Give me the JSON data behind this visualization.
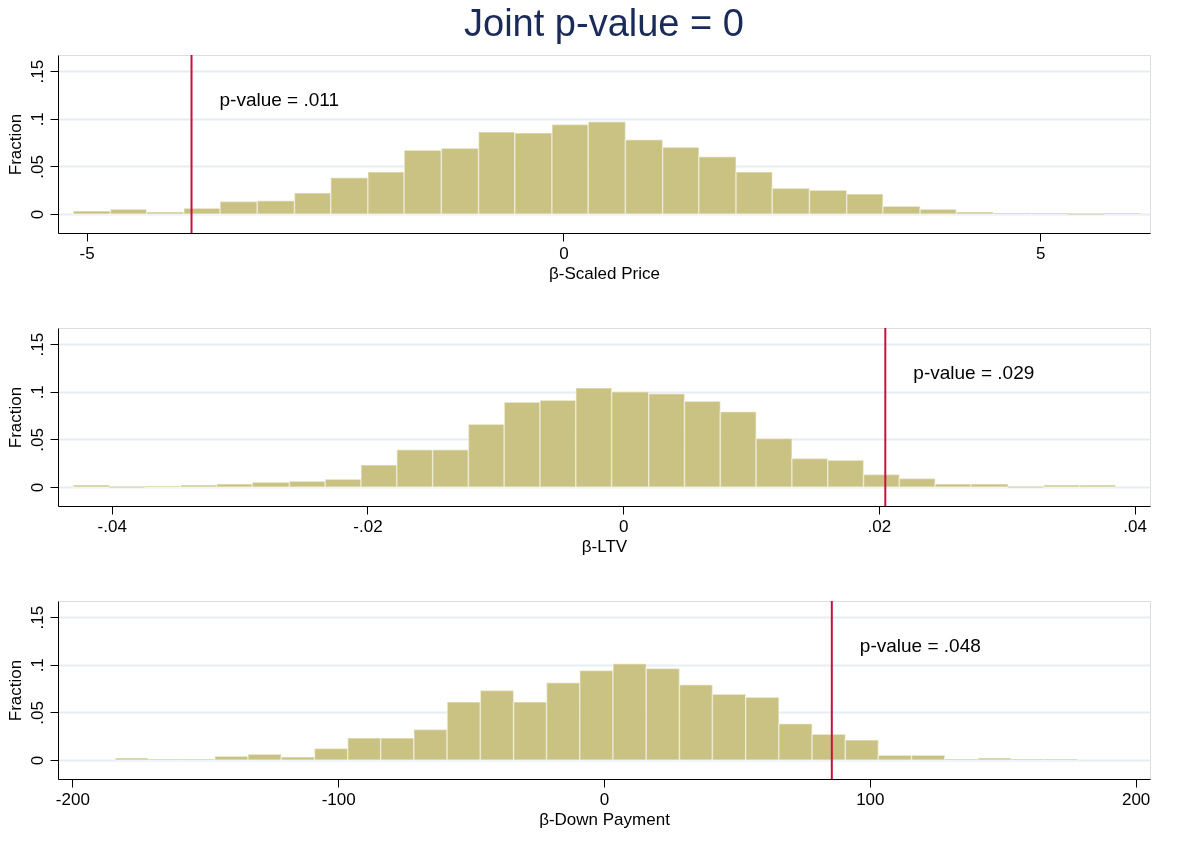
{
  "chart_data": [
    {
      "type": "histogram",
      "title": "Joint p-value = 0",
      "xlabel": "β-Scaled Price",
      "ylabel": "Fraction",
      "bins": [
        -5.14,
        -4.75,
        -4.37,
        -3.98,
        -3.6,
        -3.21,
        -2.82,
        -2.44,
        -2.05,
        -1.67,
        -1.28,
        -0.89,
        -0.51,
        -0.12,
        0.26,
        0.65,
        1.04,
        1.42,
        1.81,
        2.19,
        2.58,
        2.97,
        3.35,
        3.74,
        4.12,
        4.51,
        4.9,
        5.28,
        5.67,
        6.05
      ],
      "series": [
        {
          "color": "#c9c282",
          "values": [
            0.003,
            0.005,
            0.002,
            0.006,
            0.013,
            0.014,
            0.022,
            0.038,
            0.044,
            0.067,
            0.069,
            0.086,
            0.085,
            0.094,
            0.097,
            0.078,
            0.07,
            0.06,
            0.044,
            0.027,
            0.025,
            0.021,
            0.008,
            0.005,
            0.002,
            0.001,
            0.001,
            0,
            0.001
          ]
        }
      ],
      "xlim": [
        -5.3,
        6.15
      ],
      "xticks": [
        -5,
        0,
        5
      ],
      "ylim": [
        -0.02,
        0.167
      ],
      "yticks": [
        0,
        {
          "value": 0.05,
          "label": ".05"
        },
        {
          "value": 0.1,
          "label": ".1"
        },
        {
          "value": 0.15,
          "label": ".15"
        }
      ],
      "grid": "y",
      "ref_lines": [
        {
          "axis": "x",
          "value": -3.9,
          "color": "#c8103c"
        }
      ],
      "annotations": [
        {
          "text": "p-value = .011",
          "x": -3.9,
          "y": 0.12
        }
      ]
    },
    {
      "type": "histogram",
      "xlabel": "β-LTV",
      "ylabel": "Fraction",
      "bins": [
        -0.043,
        -0.0402,
        -0.0374,
        -0.0346,
        -0.0318,
        -0.029,
        -0.0261,
        -0.0233,
        -0.0205,
        -0.0177,
        -0.0149,
        -0.0121,
        -0.0093,
        -0.0065,
        -0.0037,
        -0.0009,
        0.002,
        0.0048,
        0.0076,
        0.0104,
        0.0132,
        0.016,
        0.0188,
        0.0216,
        0.0244,
        0.0272,
        0.0301,
        0.0329,
        0.0357,
        0.0385
      ],
      "series": [
        {
          "color": "#c9c282",
          "values": [
            0.002,
            0,
            0.001,
            0.002,
            0.003,
            0.005,
            0.006,
            0.008,
            0.023,
            0.039,
            0.039,
            0.066,
            0.089,
            0.091,
            0.104,
            0.1,
            0.098,
            0.09,
            0.079,
            0.051,
            0.03,
            0.028,
            0.013,
            0.009,
            0.003,
            0.003,
            0,
            0.002,
            0.002
          ]
        }
      ],
      "xlim": [
        -0.0442,
        0.0412
      ],
      "xticks": [
        {
          "value": -0.04,
          "label": "-.04"
        },
        {
          "value": -0.02,
          "label": "-.02"
        },
        0,
        {
          "value": 0.02,
          "label": ".02"
        },
        {
          "value": 0.04,
          "label": ".04"
        }
      ],
      "ylim": [
        -0.02,
        0.167
      ],
      "yticks": [
        0,
        {
          "value": 0.05,
          "label": ".05"
        },
        {
          "value": 0.1,
          "label": ".1"
        },
        {
          "value": 0.15,
          "label": ".15"
        }
      ],
      "grid": "y",
      "ref_lines": [
        {
          "axis": "x",
          "value": 0.0205,
          "color": "#c8103c"
        }
      ],
      "annotations": [
        {
          "text": "p-value = .029",
          "x": 0.0205,
          "y": 0.12
        }
      ]
    },
    {
      "type": "histogram",
      "xlabel": "β-Down Payment",
      "ylabel": "Fraction",
      "bins": [
        -183.8,
        -171.3,
        -158.8,
        -146.4,
        -133.9,
        -121.4,
        -108.9,
        -96.4,
        -84.0,
        -71.5,
        -59.0,
        -46.5,
        -34.0,
        -21.6,
        -9.1,
        3.4,
        15.9,
        28.4,
        40.8,
        53.3,
        65.8,
        78.3,
        90.8,
        103.2,
        115.7,
        128.2,
        140.7,
        153.2,
        165.6,
        178.1
      ],
      "series": [
        {
          "color": "#c9c282",
          "values": [
            0.002,
            0.001,
            0.001,
            0.004,
            0.006,
            0.003,
            0.012,
            0.023,
            0.023,
            0.032,
            0.061,
            0.073,
            0.061,
            0.081,
            0.094,
            0.101,
            0.096,
            0.079,
            0.069,
            0.066,
            0.038,
            0.027,
            0.021,
            0.005,
            0.005,
            0.001,
            0.002,
            0.001,
            0.001
          ]
        }
      ],
      "xlim": [
        -205.4,
        205.4
      ],
      "xticks": [
        -200,
        -100,
        0,
        100,
        200
      ],
      "ylim": [
        -0.02,
        0.167
      ],
      "yticks": [
        0,
        {
          "value": 0.05,
          "label": ".05"
        },
        {
          "value": 0.1,
          "label": ".1"
        },
        {
          "value": 0.15,
          "label": ".15"
        }
      ],
      "grid": "y",
      "ref_lines": [
        {
          "axis": "x",
          "value": 85.7,
          "color": "#c8103c"
        }
      ],
      "annotations": [
        {
          "text": "p-value = .048",
          "x": 85.7,
          "y": 0.12
        }
      ]
    }
  ]
}
